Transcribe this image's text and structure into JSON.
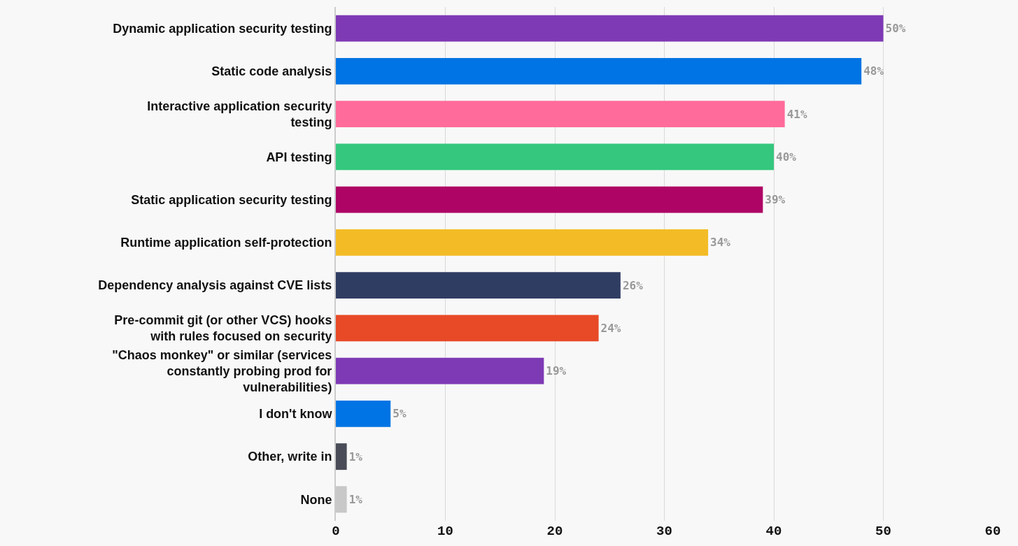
{
  "chart_data": {
    "type": "bar",
    "orientation": "horizontal",
    "categories": [
      "Dynamic application security testing",
      "Static code analysis",
      "Interactive application security testing",
      "API testing",
      "Static application security testing",
      "Runtime application self-protection",
      "Dependency analysis against CVE lists",
      "Pre-commit git (or other VCS) hooks with rules focused on security",
      "\"Chaos monkey\" or similar (services constantly probing prod for vulnerabilities)",
      "I don't know",
      "Other, write in",
      "None"
    ],
    "values": [
      50,
      48,
      41,
      40,
      39,
      34,
      26,
      24,
      19,
      5,
      1,
      1
    ],
    "value_labels": [
      "50%",
      "48%",
      "41%",
      "40%",
      "39%",
      "34%",
      "26%",
      "24%",
      "19%",
      "5%",
      "1%",
      "1%"
    ],
    "colors": [
      "#7e3ab5",
      "#0074e4",
      "#ff6b9b",
      "#35c77e",
      "#ae0465",
      "#f3bb26",
      "#303d63",
      "#e84a27",
      "#7e3ab5",
      "#0074e4",
      "#4a4d57",
      "#c8c8c8"
    ],
    "xlim": [
      0,
      60
    ],
    "xticks": [
      0,
      10,
      20,
      30,
      40,
      50,
      60
    ],
    "grid": "x"
  }
}
